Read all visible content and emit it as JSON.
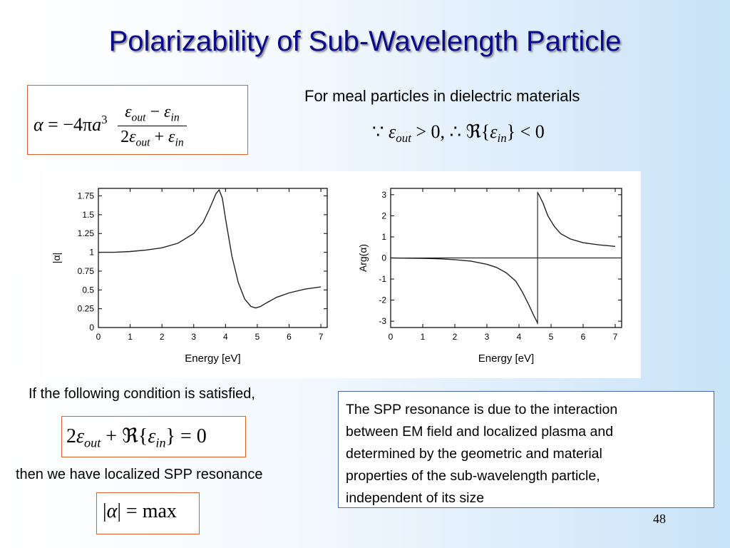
{
  "slide": {
    "title": "Polarizability of Sub-Wavelength Particle",
    "page_number": "48"
  },
  "formula_alpha": {
    "alpha": "α",
    "equals": "= −4π",
    "a": "a",
    "exp": "3",
    "eps": "ε",
    "out": "out",
    "in": "in",
    "minus": " − ",
    "plus": " + ",
    "two": "2"
  },
  "dielectric": {
    "heading": "For meal particles in dielectric materials",
    "because": "∵",
    "gt_zero": " > 0, ∴ ",
    "re": "ℜ",
    "lbrace": "{",
    "rbrace": "}",
    "lt_zero": " < 0"
  },
  "condition": {
    "text": "If the following condition is satisfied,",
    "eq_tail": " = 0"
  },
  "resonance": {
    "text": "then we have localized SPP resonance",
    "abs_bar": "|",
    "max": " = max"
  },
  "info": {
    "lines": [
      "The SPP resonance is due to the interaction",
      "between EM field and localized plasma and",
      "determined by the geometric and material",
      "properties of the sub-wavelength particle,",
      "independent of its size"
    ]
  },
  "chart_data": [
    {
      "type": "line",
      "xlabel": "Energy [eV]",
      "ylabel": "|α|",
      "xlim": [
        0,
        7.2
      ],
      "ylim": [
        0,
        1.85
      ],
      "xticks": [
        "0",
        "1",
        "2",
        "3",
        "4",
        "5",
        "6",
        "7"
      ],
      "yticks": [
        "0",
        "0.25",
        "0.5",
        "0.75",
        "1",
        "1.25",
        "1.5",
        "1.75"
      ],
      "series": [
        {
          "x": [
            0,
            0.5,
            1,
            1.5,
            2,
            2.5,
            3,
            3.3,
            3.5,
            3.7,
            3.8,
            3.9,
            4.0,
            4.2,
            4.4,
            4.6,
            4.8,
            4.95,
            5.1,
            5.3,
            5.6,
            6.0,
            6.5,
            7.0
          ],
          "y": [
            1.0,
            1.0,
            1.01,
            1.03,
            1.06,
            1.12,
            1.25,
            1.4,
            1.58,
            1.78,
            1.83,
            1.72,
            1.45,
            0.95,
            0.6,
            0.38,
            0.28,
            0.26,
            0.28,
            0.33,
            0.4,
            0.46,
            0.51,
            0.54
          ]
        }
      ]
    },
    {
      "type": "line",
      "xlabel": "Energy [eV]",
      "ylabel": "Arg(α)",
      "xlim": [
        0,
        7.2
      ],
      "ylim": [
        -3.3,
        3.3
      ],
      "xticks": [
        "0",
        "1",
        "2",
        "3",
        "4",
        "5",
        "6",
        "7"
      ],
      "yticks": [
        "-3",
        "-2",
        "-1",
        "0",
        "1",
        "2",
        "3"
      ],
      "series": [
        {
          "x": [
            0,
            0.5,
            1,
            1.5,
            2,
            2.5,
            3,
            3.3,
            3.6,
            3.9,
            4.1,
            4.3,
            4.45,
            4.55,
            4.58
          ],
          "y": [
            0.0,
            -0.01,
            -0.02,
            -0.04,
            -0.08,
            -0.15,
            -0.3,
            -0.45,
            -0.7,
            -1.1,
            -1.6,
            -2.2,
            -2.7,
            -3.0,
            -3.1
          ]
        },
        {
          "x": [
            4.58,
            4.62,
            4.75,
            4.9,
            5.1,
            5.3,
            5.6,
            6.0,
            6.5,
            7.0
          ],
          "y": [
            3.1,
            3.0,
            2.6,
            2.0,
            1.5,
            1.15,
            0.9,
            0.72,
            0.62,
            0.55
          ]
        }
      ],
      "reference_lines": [
        {
          "orientation": "horizontal",
          "value": 0
        },
        {
          "orientation": "vertical",
          "value": 4.58
        }
      ]
    }
  ]
}
